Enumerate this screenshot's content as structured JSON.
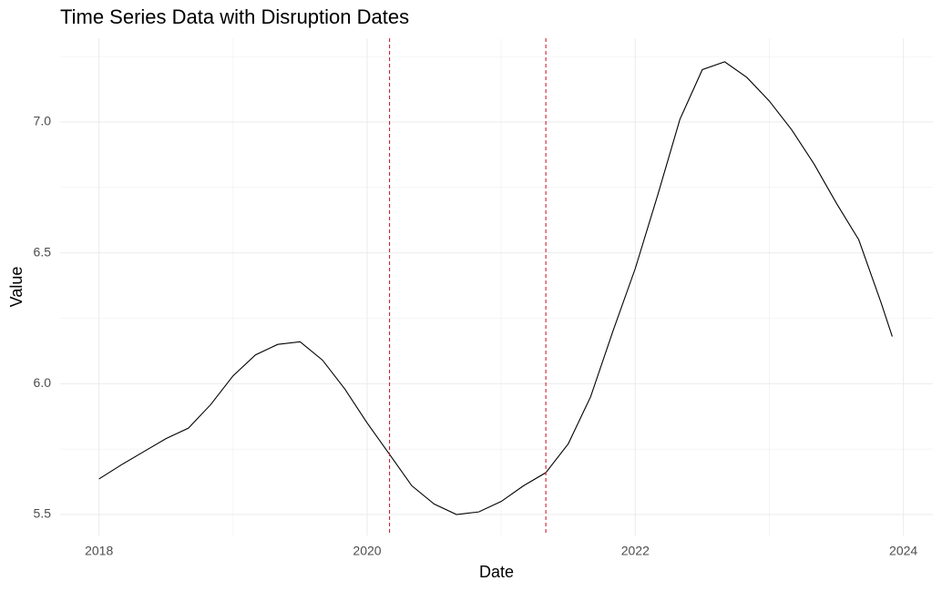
{
  "chart_data": {
    "type": "line",
    "title": "Time Series Data with Disruption Dates",
    "x_label": "Date",
    "y_label": "Value",
    "x": [
      2018.0,
      2018.167,
      2018.333,
      2018.5,
      2018.667,
      2018.833,
      2019.0,
      2019.167,
      2019.333,
      2019.5,
      2019.667,
      2019.833,
      2020.0,
      2020.167,
      2020.333,
      2020.5,
      2020.667,
      2020.833,
      2021.0,
      2021.167,
      2021.333,
      2021.5,
      2021.667,
      2021.833,
      2022.0,
      2022.167,
      2022.333,
      2022.5,
      2022.667,
      2022.833,
      2023.0,
      2023.167,
      2023.333,
      2023.5,
      2023.667,
      2023.833,
      2023.917
    ],
    "values": [
      5.636,
      5.69,
      5.74,
      5.79,
      5.83,
      5.92,
      6.03,
      6.11,
      6.15,
      6.16,
      6.09,
      5.98,
      5.85,
      5.73,
      5.61,
      5.54,
      5.5,
      5.51,
      5.55,
      5.61,
      5.66,
      5.77,
      5.95,
      6.2,
      6.44,
      6.72,
      7.01,
      7.2,
      7.23,
      7.17,
      7.08,
      6.97,
      6.84,
      6.69,
      6.55,
      6.31,
      6.18
    ],
    "color": "#000000",
    "vlines": [
      {
        "x": 2020.167,
        "color": "#cc2233"
      },
      {
        "x": 2021.333,
        "color": "#cc2233"
      }
    ],
    "xlim": [
      2017.71,
      2024.22
    ],
    "ylim": [
      5.42,
      7.32
    ],
    "xticks": [
      2018,
      2020,
      2022,
      2024
    ],
    "yticks": [
      {
        "value": 5.5,
        "label": "5.5"
      },
      {
        "value": 6.0,
        "label": "6.0"
      },
      {
        "value": 6.5,
        "label": "6.5"
      },
      {
        "value": 7.0,
        "label": "7.0"
      }
    ],
    "minor_xticks": [
      2019,
      2021,
      2023
    ],
    "minor_yticks": [
      5.75,
      6.25,
      6.75,
      7.25
    ],
    "grid": true
  }
}
